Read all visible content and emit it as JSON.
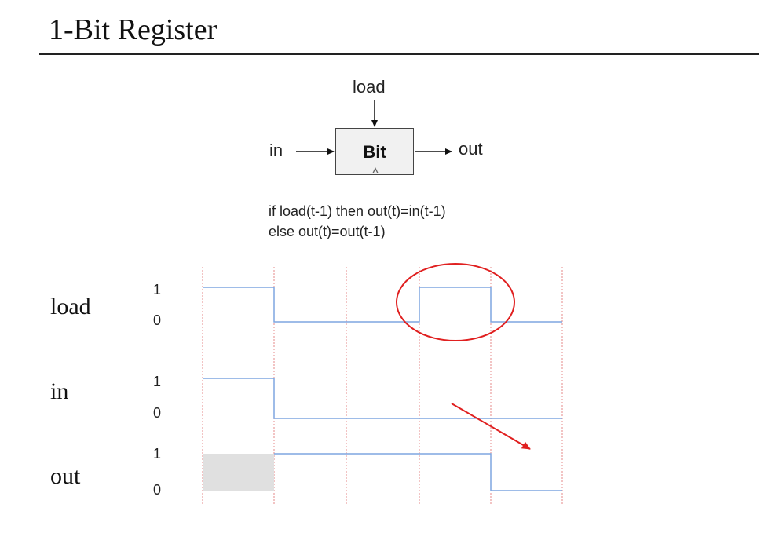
{
  "title": "1-Bit Register",
  "chip": {
    "name": "Bit",
    "input_label": "in",
    "load_label": "load",
    "output_label": "out"
  },
  "spec": {
    "line1": "if load(t-1) then out(t)=in(t-1)",
    "line2": "else out(t)=out(t-1)"
  },
  "timing": {
    "signals": [
      {
        "name": "load",
        "high_label": "1",
        "low_label": "0",
        "levels": [
          1,
          0,
          0,
          1,
          0
        ]
      },
      {
        "name": "in",
        "high_label": "1",
        "low_label": "0",
        "levels": [
          1,
          0,
          0,
          0,
          0
        ]
      },
      {
        "name": "out",
        "high_label": "1",
        "low_label": "0",
        "levels": [
          null,
          1,
          1,
          1,
          0
        ]
      }
    ],
    "time_steps": 5
  },
  "colors": {
    "waveform": "#7ea6e0",
    "clock_line": "#e68a8a",
    "annotation": "#e02020",
    "unknown_fill": "#e0e0e0"
  }
}
